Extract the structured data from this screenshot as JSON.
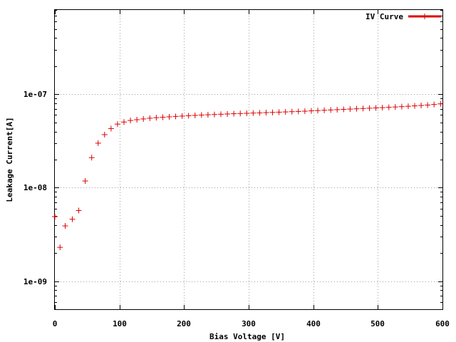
{
  "chart_data": {
    "type": "scatter",
    "xlabel": "Bias Voltage [V]",
    "ylabel": "Leakage Current[A]",
    "xlim": [
      0,
      600
    ],
    "ylim": [
      5e-10,
      8e-07
    ],
    "y_scale": "log",
    "grid": true,
    "legend_position": "top-right",
    "x_ticks": [
      0,
      100,
      200,
      300,
      400,
      500,
      600
    ],
    "x_tick_labels": [
      "0",
      "100",
      "200",
      "300",
      "400",
      "500",
      "600"
    ],
    "y_ticks": [
      1e-09,
      1e-08,
      1e-07
    ],
    "y_tick_labels": [
      "1e-09",
      "1e-08",
      "1e-07"
    ],
    "series": [
      {
        "name": "IV Curve",
        "color": "#dd0000",
        "marker": "plus",
        "x": [
          0,
          8,
          16,
          27,
          37,
          47,
          57,
          67,
          77,
          87,
          97,
          107,
          117,
          127,
          137,
          147,
          157,
          167,
          177,
          187,
          197,
          207,
          217,
          227,
          237,
          247,
          257,
          267,
          277,
          287,
          297,
          307,
          317,
          327,
          337,
          347,
          357,
          367,
          377,
          387,
          397,
          407,
          417,
          427,
          437,
          447,
          457,
          467,
          477,
          487,
          497,
          507,
          517,
          527,
          537,
          547,
          557,
          567,
          577,
          587,
          597
        ],
        "y": [
          4.9e-09,
          2.3e-09,
          3.9e-09,
          4.6e-09,
          5.7e-09,
          1.18e-08,
          2.1e-08,
          3e-08,
          3.7e-08,
          4.3e-08,
          4.8e-08,
          5.05e-08,
          5.25e-08,
          5.35e-08,
          5.45e-08,
          5.55e-08,
          5.62e-08,
          5.68e-08,
          5.74e-08,
          5.8e-08,
          5.85e-08,
          5.9e-08,
          5.95e-08,
          6e-08,
          6.04e-08,
          6.08e-08,
          6.12e-08,
          6.16e-08,
          6.2e-08,
          6.23e-08,
          6.26e-08,
          6.3e-08,
          6.33e-08,
          6.37e-08,
          6.4e-08,
          6.44e-08,
          6.48e-08,
          6.52e-08,
          6.56e-08,
          6.6e-08,
          6.65e-08,
          6.7e-08,
          6.75e-08,
          6.8e-08,
          6.85e-08,
          6.9e-08,
          6.95e-08,
          7e-08,
          7.05e-08,
          7.1e-08,
          7.15e-08,
          7.2e-08,
          7.26e-08,
          7.32e-08,
          7.38e-08,
          7.45e-08,
          7.52e-08,
          7.6e-08,
          7.68e-08,
          7.78e-08,
          7.9e-08
        ]
      }
    ]
  }
}
